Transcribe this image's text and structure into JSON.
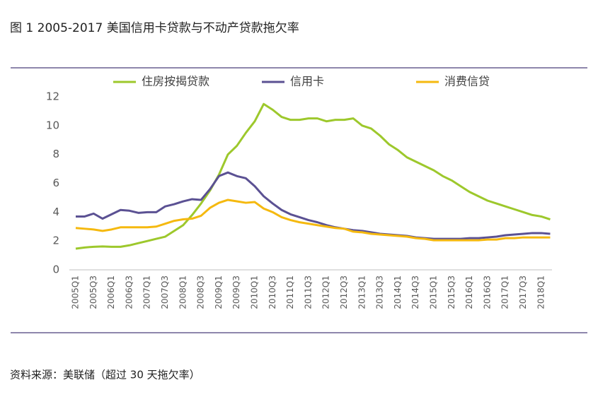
{
  "chart_data": {
    "type": "line",
    "title": "图  1 2005-2017 美国信用卡贷款与不动产贷款拖欠率",
    "source": "资料来源：美联储（超过 30 天拖欠率）",
    "categories": [
      "2005Q1",
      null,
      "2005Q3",
      null,
      "2006Q1",
      null,
      "2006Q3",
      null,
      "2007Q1",
      null,
      "2007Q3",
      null,
      "2008Q1",
      null,
      "2008Q3",
      null,
      "2009Q1",
      null,
      "2009Q3",
      null,
      "2010Q1",
      null,
      "2010Q3",
      null,
      "2011Q1",
      null,
      "2011Q3",
      null,
      "2012Q1",
      null,
      "2012Q3",
      null,
      "2013Q1",
      null,
      "2013Q3",
      null,
      "2014Q1",
      null,
      "2014Q3",
      null,
      "2015Q1",
      null,
      "2015Q3",
      null,
      "2016Q1",
      null,
      "2016Q3",
      null,
      "2017Q1",
      null,
      "2017Q3",
      null,
      "2018Q1",
      null
    ],
    "series": [
      {
        "name": "住房按揭贷款",
        "color": "#9dc82c",
        "values": [
          1.47,
          1.55,
          1.6,
          1.62,
          1.6,
          1.6,
          1.7,
          1.85,
          2.0,
          2.15,
          2.3,
          2.7,
          3.1,
          3.8,
          4.6,
          5.5,
          6.6,
          8.0,
          8.6,
          9.5,
          10.3,
          11.5,
          11.1,
          10.6,
          10.4,
          10.4,
          10.5,
          10.5,
          10.3,
          10.4,
          10.4,
          10.5,
          10.0,
          9.8,
          9.3,
          8.7,
          8.3,
          7.8,
          7.5,
          7.2,
          6.9,
          6.5,
          6.2,
          5.8,
          5.4,
          5.1,
          4.8,
          4.6,
          4.4,
          4.2,
          4.0,
          3.8,
          3.7,
          3.5
        ]
      },
      {
        "name": "信用卡",
        "color": "#5b5193",
        "values": [
          3.7,
          3.7,
          3.9,
          3.55,
          3.85,
          4.15,
          4.1,
          3.95,
          4.0,
          4.0,
          4.4,
          4.55,
          4.75,
          4.9,
          4.85,
          5.6,
          6.5,
          6.75,
          6.5,
          6.35,
          5.8,
          5.1,
          4.6,
          4.15,
          3.85,
          3.65,
          3.45,
          3.3,
          3.1,
          2.95,
          2.85,
          2.75,
          2.7,
          2.6,
          2.5,
          2.45,
          2.4,
          2.35,
          2.25,
          2.2,
          2.15,
          2.15,
          2.15,
          2.15,
          2.2,
          2.2,
          2.25,
          2.3,
          2.4,
          2.45,
          2.5,
          2.55,
          2.55,
          2.5
        ]
      },
      {
        "name": "消费信贷",
        "color": "#f5b90f",
        "values": [
          2.9,
          2.85,
          2.8,
          2.7,
          2.8,
          2.95,
          2.95,
          2.95,
          2.95,
          3.0,
          3.2,
          3.4,
          3.5,
          3.55,
          3.75,
          4.3,
          4.65,
          4.85,
          4.75,
          4.65,
          4.7,
          4.25,
          4.0,
          3.65,
          3.45,
          3.3,
          3.2,
          3.1,
          3.0,
          2.9,
          2.85,
          2.65,
          2.6,
          2.5,
          2.45,
          2.4,
          2.35,
          2.3,
          2.2,
          2.15,
          2.05,
          2.05,
          2.05,
          2.05,
          2.05,
          2.05,
          2.1,
          2.1,
          2.2,
          2.2,
          2.25,
          2.25,
          2.25,
          2.25
        ]
      }
    ],
    "ylim": [
      0,
      12
    ],
    "yticks": [
      0,
      2,
      4,
      6,
      8,
      10,
      12
    ],
    "grid": false
  }
}
